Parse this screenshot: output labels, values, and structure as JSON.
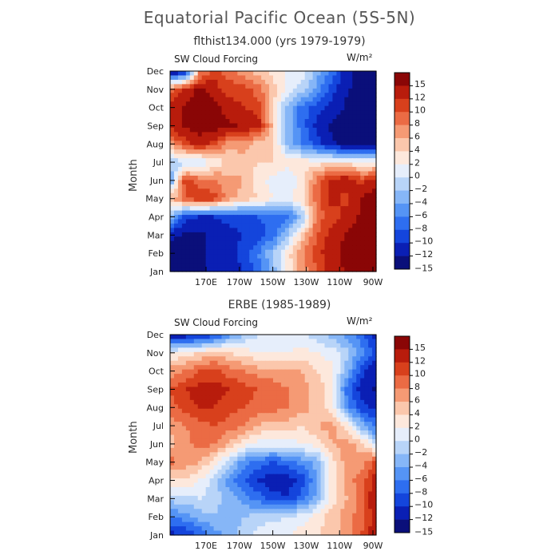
{
  "title": "Equatorial Pacific Ocean (5S-5N)",
  "chart_data": [
    {
      "type": "heatmap",
      "subtitle": "flthist134.000 (yrs 1979-1979)",
      "label_left": "SW Cloud Forcing",
      "units": "W/m²",
      "ylabel": "Month",
      "months": [
        "Jan",
        "Feb",
        "Mar",
        "Apr",
        "May",
        "Jun",
        "Jul",
        "Aug",
        "Sep",
        "Oct",
        "Nov",
        "Dec"
      ],
      "xticks": [
        "170E",
        "170W",
        "150W",
        "130W",
        "110W",
        "90W"
      ],
      "colorbar_ticks": [
        "15",
        "12",
        "10",
        "8",
        "6",
        "4",
        "2",
        "0",
        "−2",
        "−4",
        "−6",
        "−8",
        "−10",
        "−12",
        "−15"
      ],
      "values": [
        [
          -14,
          -15,
          -14,
          -13,
          -13,
          -11,
          -8,
          -4,
          2,
          6,
          9,
          12,
          14,
          15,
          15
        ],
        [
          -14,
          -15,
          -14,
          -13,
          -12,
          -10,
          -7,
          -3,
          2,
          7,
          10,
          13,
          14,
          15,
          15
        ],
        [
          -13,
          -14,
          -14,
          -13,
          -12,
          -11,
          -10,
          -8,
          -3,
          4,
          9,
          12,
          14,
          15,
          15
        ],
        [
          -4,
          -10,
          -11,
          -11,
          -10,
          -10,
          -9,
          -8,
          -8,
          -3,
          8,
          10,
          12,
          14,
          15
        ],
        [
          4,
          9,
          11,
          10,
          6,
          4,
          3,
          1,
          0,
          3,
          8,
          12,
          10,
          14,
          15
        ],
        [
          -6,
          10,
          8,
          7,
          6,
          5,
          2,
          0,
          -1,
          2,
          8,
          12,
          13,
          10,
          12
        ],
        [
          -2,
          -2,
          -2,
          2,
          3,
          4,
          3,
          3,
          2,
          2,
          2,
          2,
          2,
          1,
          1
        ],
        [
          6,
          10,
          12,
          10,
          6,
          6,
          4,
          4,
          -4,
          -7,
          -10,
          -13,
          -15,
          -15,
          -15
        ],
        [
          12,
          14,
          15,
          15,
          14,
          13,
          12,
          4,
          -4,
          -8,
          -12,
          -14,
          -15,
          -15,
          -15
        ],
        [
          12,
          14,
          15,
          15,
          12,
          11,
          10,
          3,
          -4,
          -8,
          -10,
          -12,
          -14,
          -15,
          -15
        ],
        [
          8,
          12,
          14,
          12,
          10,
          10,
          8,
          4,
          0,
          -2,
          -6,
          -10,
          -13,
          -15,
          -15
        ],
        [
          -15,
          -13,
          6,
          10,
          8,
          6,
          4,
          2,
          1,
          0,
          -4,
          -8,
          -12,
          -15,
          -15
        ]
      ]
    },
    {
      "type": "heatmap",
      "subtitle": "ERBE (1985-1989)",
      "label_left": "SW Cloud Forcing",
      "units": "W/m²",
      "ylabel": "Month",
      "months": [
        "Jan",
        "Feb",
        "Mar",
        "Apr",
        "May",
        "Jun",
        "Jul",
        "Aug",
        "Sep",
        "Oct",
        "Nov",
        "Dec"
      ],
      "xticks": [
        "170E",
        "170W",
        "150W",
        "130W",
        "110W",
        "90W"
      ],
      "colorbar_ticks": [
        "15",
        "12",
        "10",
        "8",
        "6",
        "4",
        "2",
        "0",
        "−2",
        "−4",
        "−6",
        "−8",
        "−10",
        "−12",
        "−15"
      ],
      "values": [
        [
          -12,
          -11,
          -9,
          -6,
          -4,
          -2,
          0,
          1,
          1,
          2,
          3,
          4,
          6,
          9,
          13
        ],
        [
          -7,
          -6,
          -4,
          -3,
          -4,
          -3,
          -2,
          -2,
          -1,
          0,
          2,
          4,
          6,
          8,
          12
        ],
        [
          -2,
          -2,
          -1,
          -2,
          -4,
          -6,
          -8,
          -10,
          -11,
          -8,
          -4,
          2,
          5,
          8,
          14
        ],
        [
          2,
          3,
          1,
          -2,
          -6,
          -9,
          -11,
          -13,
          -12,
          -10,
          -5,
          2,
          6,
          8,
          12
        ],
        [
          8,
          6,
          5,
          2,
          -2,
          -6,
          -8,
          -9,
          -8,
          -6,
          -4,
          2,
          6,
          6,
          10
        ],
        [
          4,
          6,
          8,
          7,
          5,
          2,
          0,
          0,
          0,
          1,
          2,
          5,
          6,
          4,
          -2
        ],
        [
          6,
          7,
          8,
          9,
          8,
          7,
          5,
          4,
          4,
          3,
          5,
          6,
          2,
          -4,
          -8
        ],
        [
          8,
          10,
          11,
          11,
          10,
          9,
          8,
          8,
          7,
          6,
          4,
          2,
          -6,
          -10,
          -12
        ],
        [
          9,
          11,
          12,
          12,
          11,
          10,
          9,
          8,
          7,
          6,
          4,
          2,
          -8,
          -12,
          -14
        ],
        [
          6,
          7,
          9,
          10,
          8,
          7,
          6,
          6,
          5,
          5,
          3,
          2,
          -4,
          -10,
          -13
        ],
        [
          1,
          2,
          3,
          4,
          3,
          2,
          1,
          1,
          1,
          2,
          1,
          0,
          -2,
          -6,
          -10
        ],
        [
          -14,
          -13,
          -12,
          -10,
          -6,
          -3,
          -1,
          0,
          0,
          -1,
          -2,
          -4,
          -6,
          -8,
          -12
        ]
      ]
    }
  ]
}
